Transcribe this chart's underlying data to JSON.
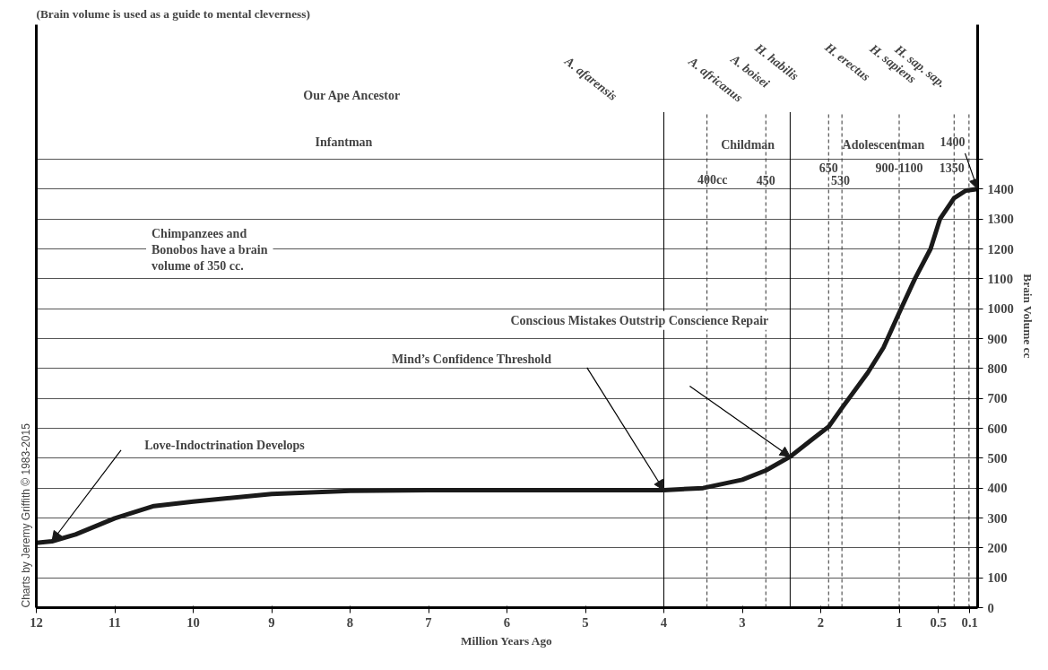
{
  "chart_data": {
    "type": "line",
    "subtitle": "(Brain volume is used as a guide to mental cleverness)",
    "xlabel": "Million Years Ago",
    "ylabel": "Brain Volume cc",
    "x": [
      12,
      11.8,
      11.5,
      11,
      10.5,
      10,
      9,
      8,
      7,
      6,
      5,
      4,
      3.5,
      3,
      2.7,
      2.39,
      2.1,
      1.9,
      1.73,
      1.4,
      1.2,
      1.0,
      0.8,
      0.6,
      0.48,
      0.3,
      0.15,
      0
    ],
    "series": [
      {
        "color": "#1a1a1a",
        "values": [
          217,
          222,
          245,
          299,
          340,
          355,
          380,
          391,
          393,
          393,
          393,
          393,
          400,
          428,
          459,
          505,
          565,
          605,
          668,
          786,
          870,
          986,
          1100,
          1200,
          1300,
          1370,
          1395,
          1400
        ]
      }
    ],
    "xlim": [
      12,
      0
    ],
    "xticks": [
      12,
      11,
      10,
      9,
      8,
      7,
      6,
      5,
      4,
      3,
      2,
      1,
      0.5,
      0.1
    ],
    "ylim": [
      0,
      1950
    ],
    "yticks": [
      0,
      100,
      200,
      300,
      400,
      500,
      600,
      700,
      800,
      900,
      1000,
      1100,
      1200,
      1300,
      1400,
      {
        "value": 1500,
        "label": null
      }
    ],
    "grid": "y",
    "marker": "none",
    "line_style": "solid",
    "ref_lines": [
      {
        "axis": "x",
        "value": 4,
        "color": "#000000",
        "line_style": "solid"
      },
      {
        "axis": "x",
        "value": 3.45,
        "color": "#333333",
        "line_style": "dashed"
      },
      {
        "axis": "x",
        "value": 2.7,
        "color": "#333333",
        "line_style": "dashed"
      },
      {
        "axis": "x",
        "value": 2.39,
        "color": "#000000",
        "line_style": "solid"
      },
      {
        "axis": "x",
        "value": 1.9,
        "color": "#333333",
        "line_style": "dashed"
      },
      {
        "axis": "x",
        "value": 1.73,
        "color": "#333333",
        "line_style": "dashed"
      },
      {
        "axis": "x",
        "value": 1.0,
        "color": "#333333",
        "line_style": "dashed"
      },
      {
        "axis": "x",
        "value": 0.3,
        "color": "#333333",
        "line_style": "dashed"
      },
      {
        "axis": "x",
        "value": 0.11,
        "color": "#333333",
        "line_style": "dashed"
      }
    ],
    "annotations": [
      "Charts by Jeremy Griffith © 1983-2015",
      "Chimpanzees and\nBonobos have a brain\nvolume of 350 cc.",
      "Love-Indoctrination Develops",
      "Mind’s Confidence Threshold",
      "Conscious Mistakes Outstrip Conscience Repair",
      {
        "text": "1400",
        "x": 0,
        "y": 1400
      },
      "A. afarensis",
      "A. africanus",
      "A. boisei",
      "H. habilis",
      "H. erectus",
      "H. sapiens",
      "H. sap. sap.",
      "400cc",
      "450",
      "650",
      "530",
      "900-1100",
      "1350",
      "Our Ape Ancestor",
      "Infantman",
      "Childman",
      "Adolescentman"
    ]
  }
}
